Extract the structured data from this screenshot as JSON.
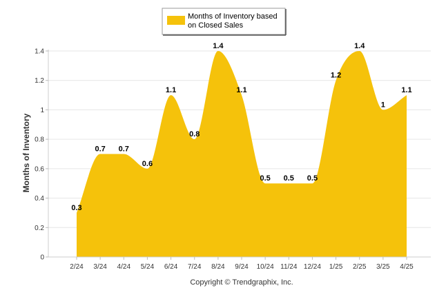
{
  "chart_data": {
    "type": "area",
    "categories": [
      "2/24",
      "3/24",
      "4/24",
      "5/24",
      "6/24",
      "7/24",
      "8/24",
      "9/24",
      "10/24",
      "11/24",
      "12/24",
      "1/25",
      "2/25",
      "3/25",
      "4/25"
    ],
    "series": [
      {
        "name": "Months of Inventory based on Closed Sales",
        "values": [
          0.3,
          0.7,
          0.7,
          0.6,
          1.1,
          0.8,
          1.4,
          1.1,
          0.5,
          0.5,
          0.5,
          1.2,
          1.4,
          1,
          1.1
        ],
        "value_labels": [
          "0.3",
          "0.7",
          "0.7",
          "0.6",
          "1.1",
          "0.8",
          "1.4",
          "1.1",
          "0.5",
          "0.5",
          "0.5",
          "1.2",
          "1.4",
          "1",
          "1.1"
        ],
        "color": "#f5c20b"
      }
    ],
    "title": "",
    "xlabel": "",
    "ylabel": "Months of Inventory",
    "ylim": [
      0,
      1.4
    ],
    "yticks": [
      0,
      0.2,
      0.4,
      0.6,
      0.8,
      1,
      1.2,
      1.4
    ],
    "ytick_labels": [
      "0",
      "0.2",
      "0.4",
      "0.6",
      "0.8",
      "1",
      "1.2",
      "1.4"
    ],
    "grid": true,
    "grid_color": "#e6e6e6",
    "legend": {
      "position": "top-center",
      "lines": [
        "Months of Inventory based",
        "on Closed Sales"
      ]
    },
    "footer": "Copyright © Trendgraphix, Inc."
  }
}
